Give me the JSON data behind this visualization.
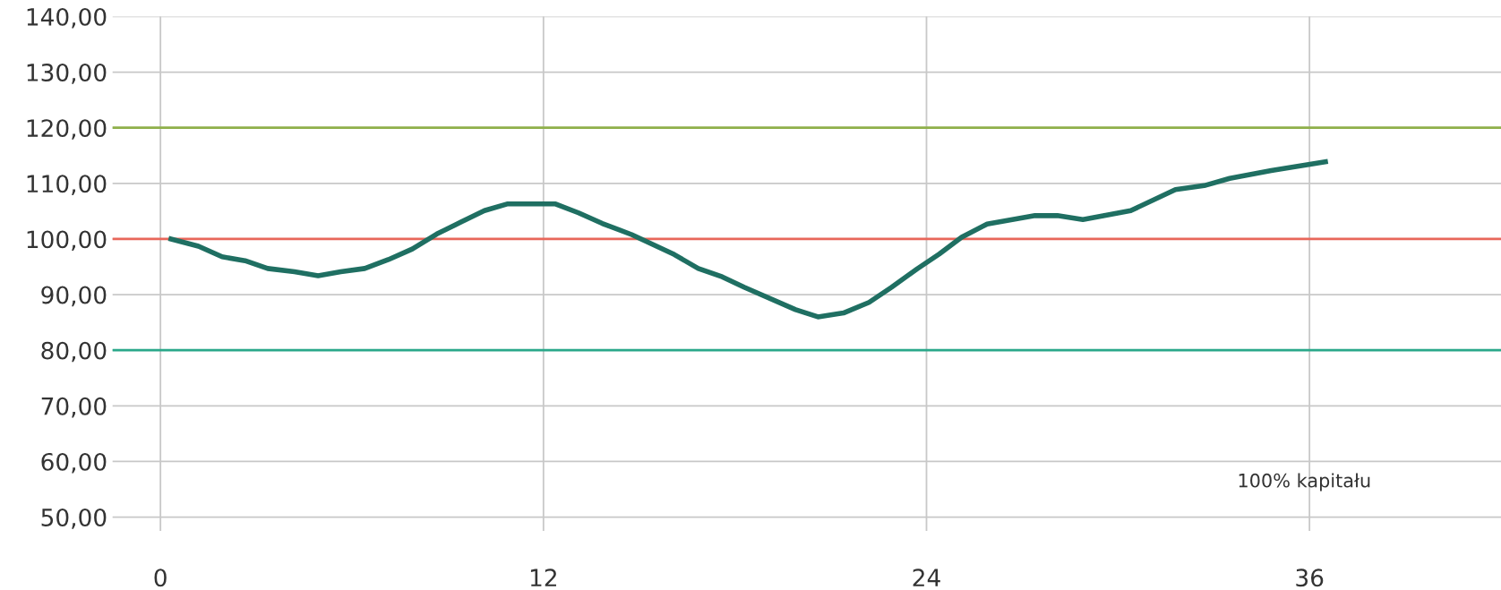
{
  "chart_data": {
    "type": "line",
    "x": [
      0.33,
      1.19,
      1.93,
      2.65,
      3.36,
      4.2,
      4.94,
      5.65,
      6.4,
      7.14,
      7.89,
      8.66,
      9.4,
      10.15,
      10.86,
      12.38,
      13.1,
      13.84,
      14.76,
      16.1,
      16.85,
      17.6,
      18.3,
      19.9,
      20.6,
      21.4,
      22.2,
      22.9,
      23.7,
      24.4,
      25.1,
      25.9,
      27.4,
      28.1,
      28.9,
      30.4,
      31.8,
      32.7,
      33.5,
      34.8,
      36.5
    ],
    "series": [
      {
        "color": "#1f6f62",
        "values": [
          100.0,
          98.7,
          96.8,
          96.1,
          94.7,
          94.1,
          93.4,
          94.1,
          94.7,
          96.3,
          98.2,
          100.9,
          103.0,
          105.1,
          106.3,
          106.3,
          104.7,
          102.8,
          100.8,
          97.2,
          94.7,
          93.2,
          91.3,
          87.3,
          86.0,
          86.7,
          88.6,
          91.3,
          94.6,
          97.3,
          100.3,
          102.7,
          104.2,
          104.2,
          103.5,
          105.1,
          108.9,
          109.6,
          110.9,
          112.3,
          113.9
        ]
      }
    ],
    "xlim": [
      -1.5,
      42
    ],
    "xticks": [
      0,
      12,
      24,
      36
    ],
    "ylim": [
      47.5,
      140
    ],
    "yticks": [
      {
        "value": 50,
        "label": "50,00"
      },
      {
        "value": 60,
        "label": "60,00"
      },
      {
        "value": 70,
        "label": "70,00"
      },
      {
        "value": 80,
        "label": "80,00"
      },
      {
        "value": 90,
        "label": "90,00"
      },
      {
        "value": 100,
        "label": "100,00"
      },
      {
        "value": 110,
        "label": "110,00"
      },
      {
        "value": 120,
        "label": "120,00"
      },
      {
        "value": 130,
        "label": "130,00"
      },
      {
        "value": 140,
        "label": "140,00"
      }
    ],
    "ref_lines": [
      {
        "axis": "y",
        "value": 120,
        "color": "#8fb04a"
      },
      {
        "axis": "y",
        "value": 100,
        "color": "#e8665a"
      },
      {
        "axis": "y",
        "value": 80,
        "color": "#2aa88a"
      }
    ],
    "annotations": [
      "100% kapitału"
    ],
    "grid": true,
    "marker": "none",
    "line_style": "solid"
  }
}
